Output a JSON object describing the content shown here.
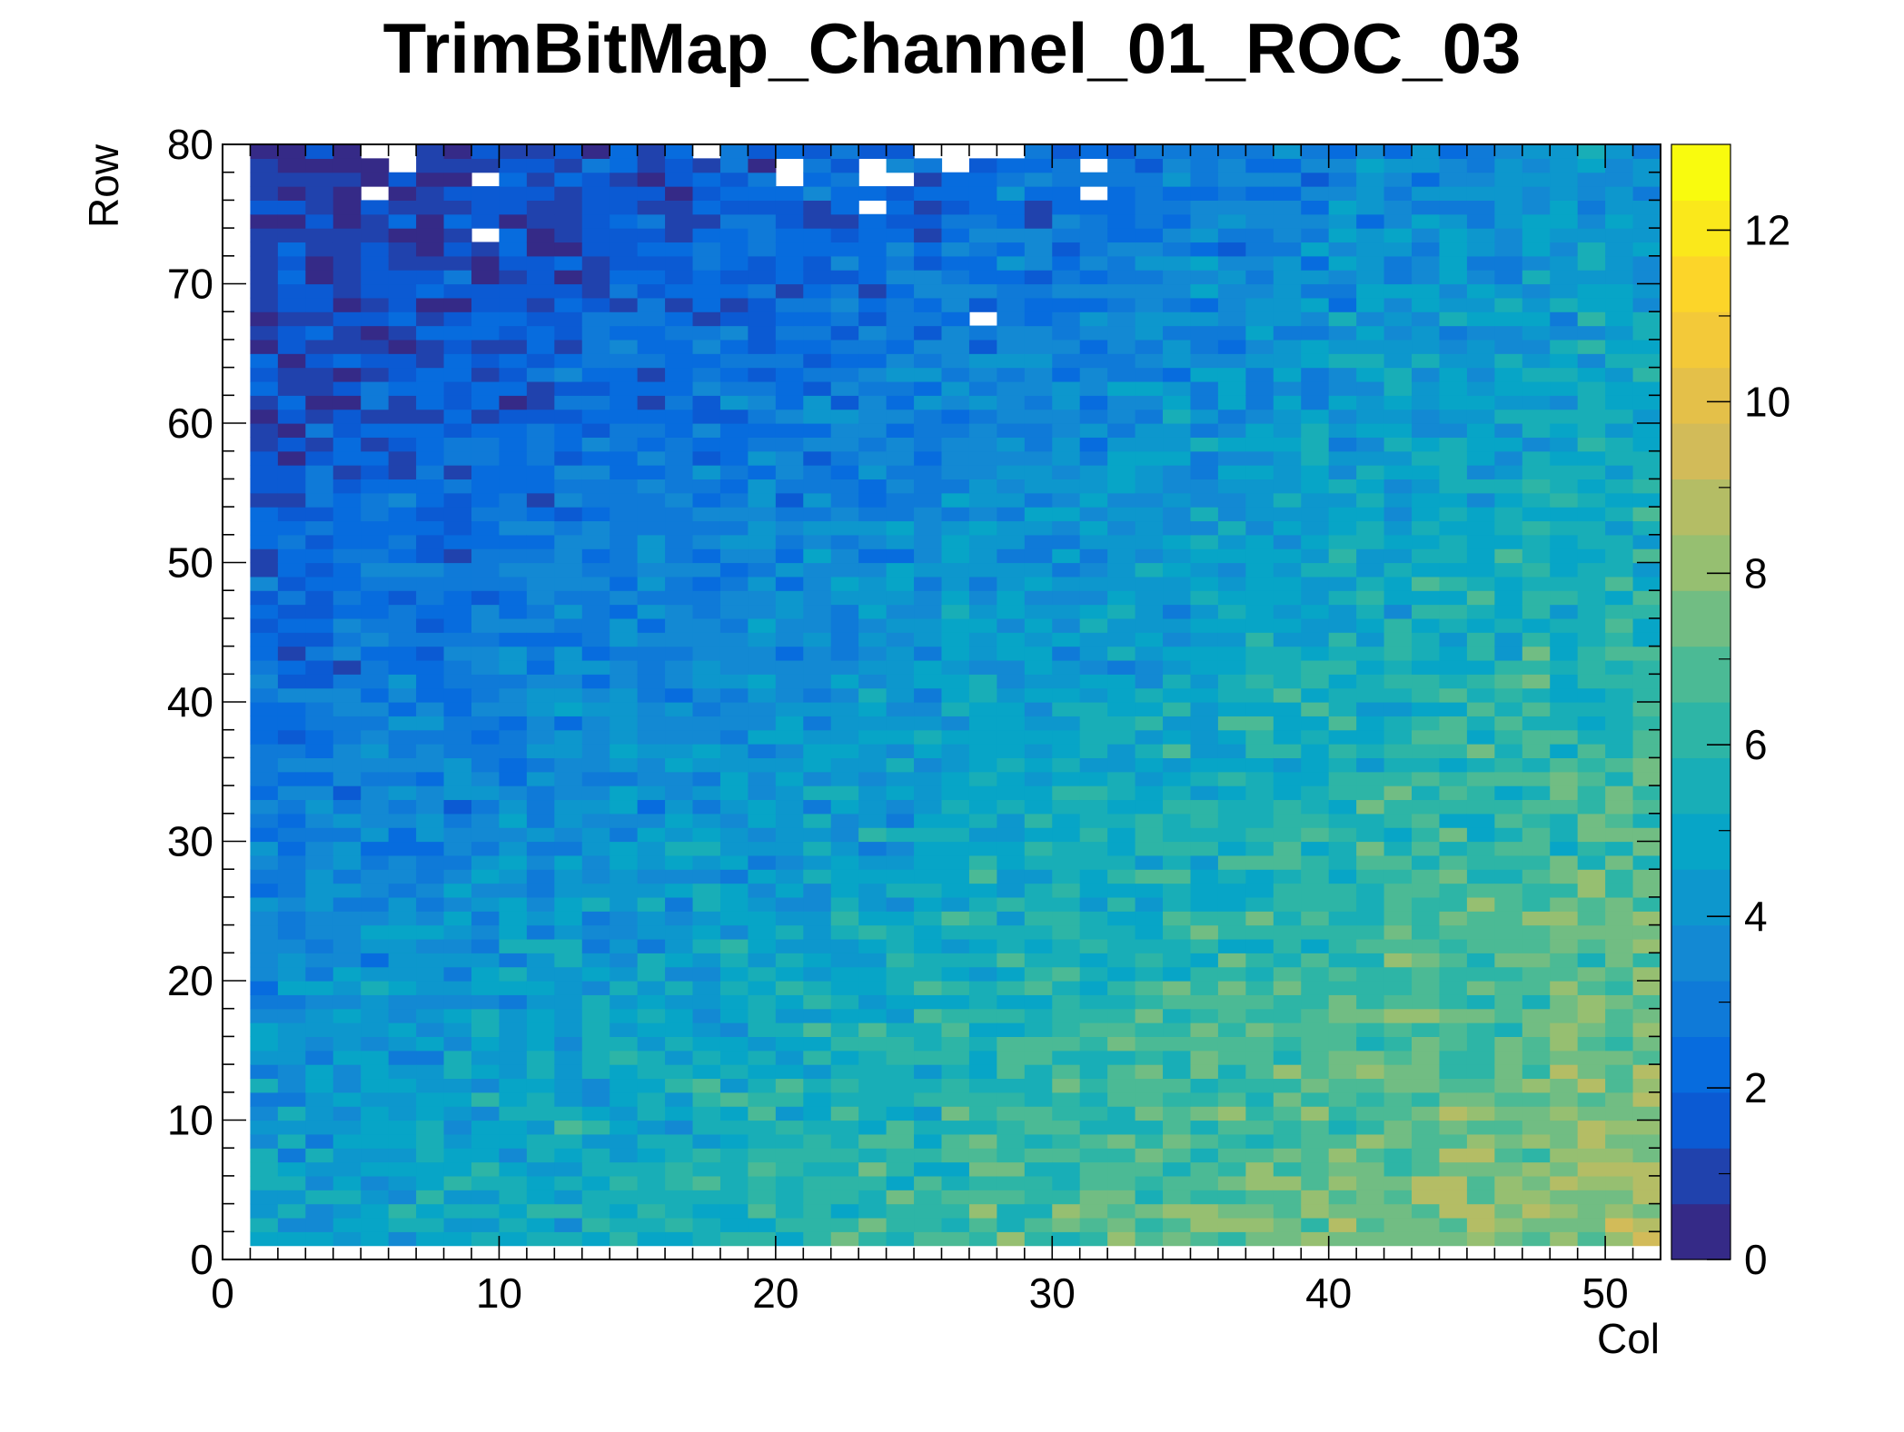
{
  "chart_data": {
    "type": "heatmap",
    "title": "TrimBitMap_Channel_01_ROC_03",
    "xlabel": "Col",
    "ylabel": "Row",
    "xlim": [
      0,
      52
    ],
    "ylim": [
      0,
      80
    ],
    "zlim": [
      0,
      13
    ],
    "x_ticks": [
      "0",
      "10",
      "20",
      "30",
      "40",
      "50"
    ],
    "y_ticks": [
      "0",
      "10",
      "20",
      "30",
      "40",
      "50",
      "60",
      "70",
      "80"
    ],
    "z_ticks": [
      "0",
      "2",
      "4",
      "6",
      "8",
      "10",
      "12"
    ],
    "palette": "kParula",
    "palette_colors": [
      "#352a87",
      "#0363e1",
      "#1485d4",
      "#06a7c6",
      "#38b99e",
      "#92bf73",
      "#d9ba56",
      "#fcce2e",
      "#f9fb0e"
    ],
    "grid": false,
    "empty_color": "#ffffff",
    "cell_values_note": "values per cell (col 1-51, row 1-79) estimated from color; trend low (~2-4) at upper-left rising to ~10-12 at lower-right",
    "model": {
      "base": 4.6,
      "col_coeff": 0.075,
      "row_coeff": -0.055,
      "noise_amplitude": 1.6,
      "min": 0.6,
      "max": 12.6
    },
    "empty_cells": [
      [
        5,
        79
      ],
      [
        6,
        79
      ],
      [
        6,
        78
      ],
      [
        5,
        76
      ],
      [
        9,
        77
      ],
      [
        9,
        73
      ],
      [
        17,
        79
      ],
      [
        20,
        78
      ],
      [
        20,
        77
      ],
      [
        23,
        78
      ],
      [
        23,
        77
      ],
      [
        24,
        77
      ],
      [
        23,
        75
      ],
      [
        25,
        79
      ],
      [
        26,
        79
      ],
      [
        27,
        79
      ],
      [
        26,
        78
      ],
      [
        28,
        79
      ],
      [
        31,
        78
      ],
      [
        31,
        76
      ],
      [
        27,
        67
      ]
    ]
  }
}
